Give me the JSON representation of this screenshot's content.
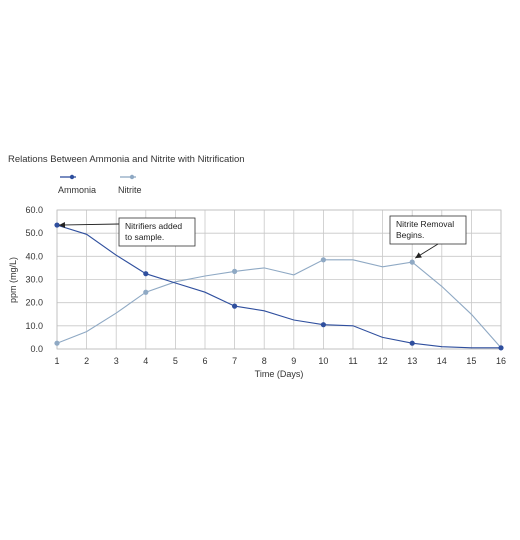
{
  "chart_data": {
    "type": "line",
    "title": "Relations Between Ammonia and Nitrite with Nitrification",
    "xlabel": "Time (Days)",
    "ylabel": "ppm (mg/L)",
    "x": [
      1,
      2,
      3,
      4,
      5,
      6,
      7,
      8,
      9,
      10,
      11,
      12,
      13,
      14,
      15,
      16
    ],
    "x_tick_labels": [
      "1",
      "2",
      "3",
      "4",
      "5",
      "6",
      "7",
      "8",
      "9",
      "10",
      "11",
      "12",
      "13",
      "14",
      "15",
      "16"
    ],
    "y_tick_labels": [
      "0.0",
      "10.0",
      "20.0",
      "30.0",
      "40.0",
      "50.0",
      "60.0"
    ],
    "ylim": [
      0,
      60
    ],
    "xlim": [
      1,
      16
    ],
    "grid": true,
    "legend_position": "top-left",
    "series": [
      {
        "name": "Ammonia",
        "color": "#2f4f9e",
        "values": [
          53.5,
          49.5,
          40.5,
          32.5,
          28.5,
          24.5,
          18.5,
          16.5,
          12.5,
          10.5,
          10.0,
          5.0,
          2.5,
          1.0,
          0.5,
          0.5
        ],
        "marked_points": [
          1,
          4,
          7,
          10,
          13,
          16
        ]
      },
      {
        "name": "Nitrite",
        "color": "#8fa9c4",
        "values": [
          2.5,
          7.5,
          15.5,
          24.5,
          29.0,
          31.5,
          33.5,
          35.0,
          32.0,
          38.5,
          38.5,
          35.5,
          37.5,
          27.0,
          15.0,
          0.5
        ],
        "marked_points": [
          1,
          4,
          7,
          10,
          13
        ]
      }
    ],
    "annotations": [
      {
        "text": [
          "Nitrifiers added",
          "to sample."
        ]
      },
      {
        "text": [
          "Nitrite Removal",
          "Begins."
        ]
      }
    ]
  }
}
